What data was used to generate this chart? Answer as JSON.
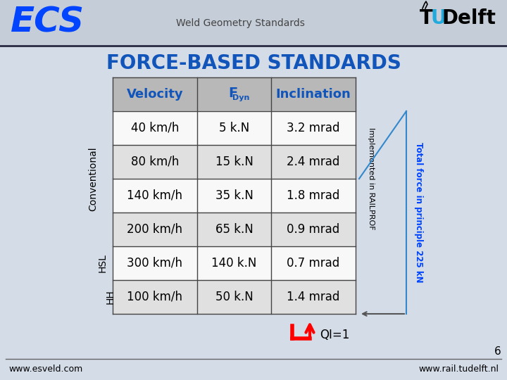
{
  "title": "FORCE-BASED STANDARDS",
  "rows": [
    [
      "40 km/h",
      "5 k.N",
      "3.2 mrad"
    ],
    [
      "80 km/h",
      "15 k.N",
      "2.4 mrad"
    ],
    [
      "140 km/h",
      "35 k.N",
      "1.8 mrad"
    ],
    [
      "200 km/h",
      "65 k.N",
      "0.9 mrad"
    ],
    [
      "300 km/h",
      "140 k.N",
      "0.7 mrad"
    ],
    [
      "100 km/h",
      "50 k.N",
      "1.4 mrad"
    ]
  ],
  "ecs_color": "#0044ff",
  "title_color": "#1155bb",
  "header_color": "#1155bb",
  "table_header_bg": "#b8b8b8",
  "row_bg_alt": "#e0e0e0",
  "row_bg_white": "#f8f8f8",
  "footer_left": "www.esveld.com",
  "footer_right": "www.rail.tudelft.nl",
  "page_num": "6",
  "bg_color": "#d4dce8",
  "header_bg": "#c5cdd8"
}
